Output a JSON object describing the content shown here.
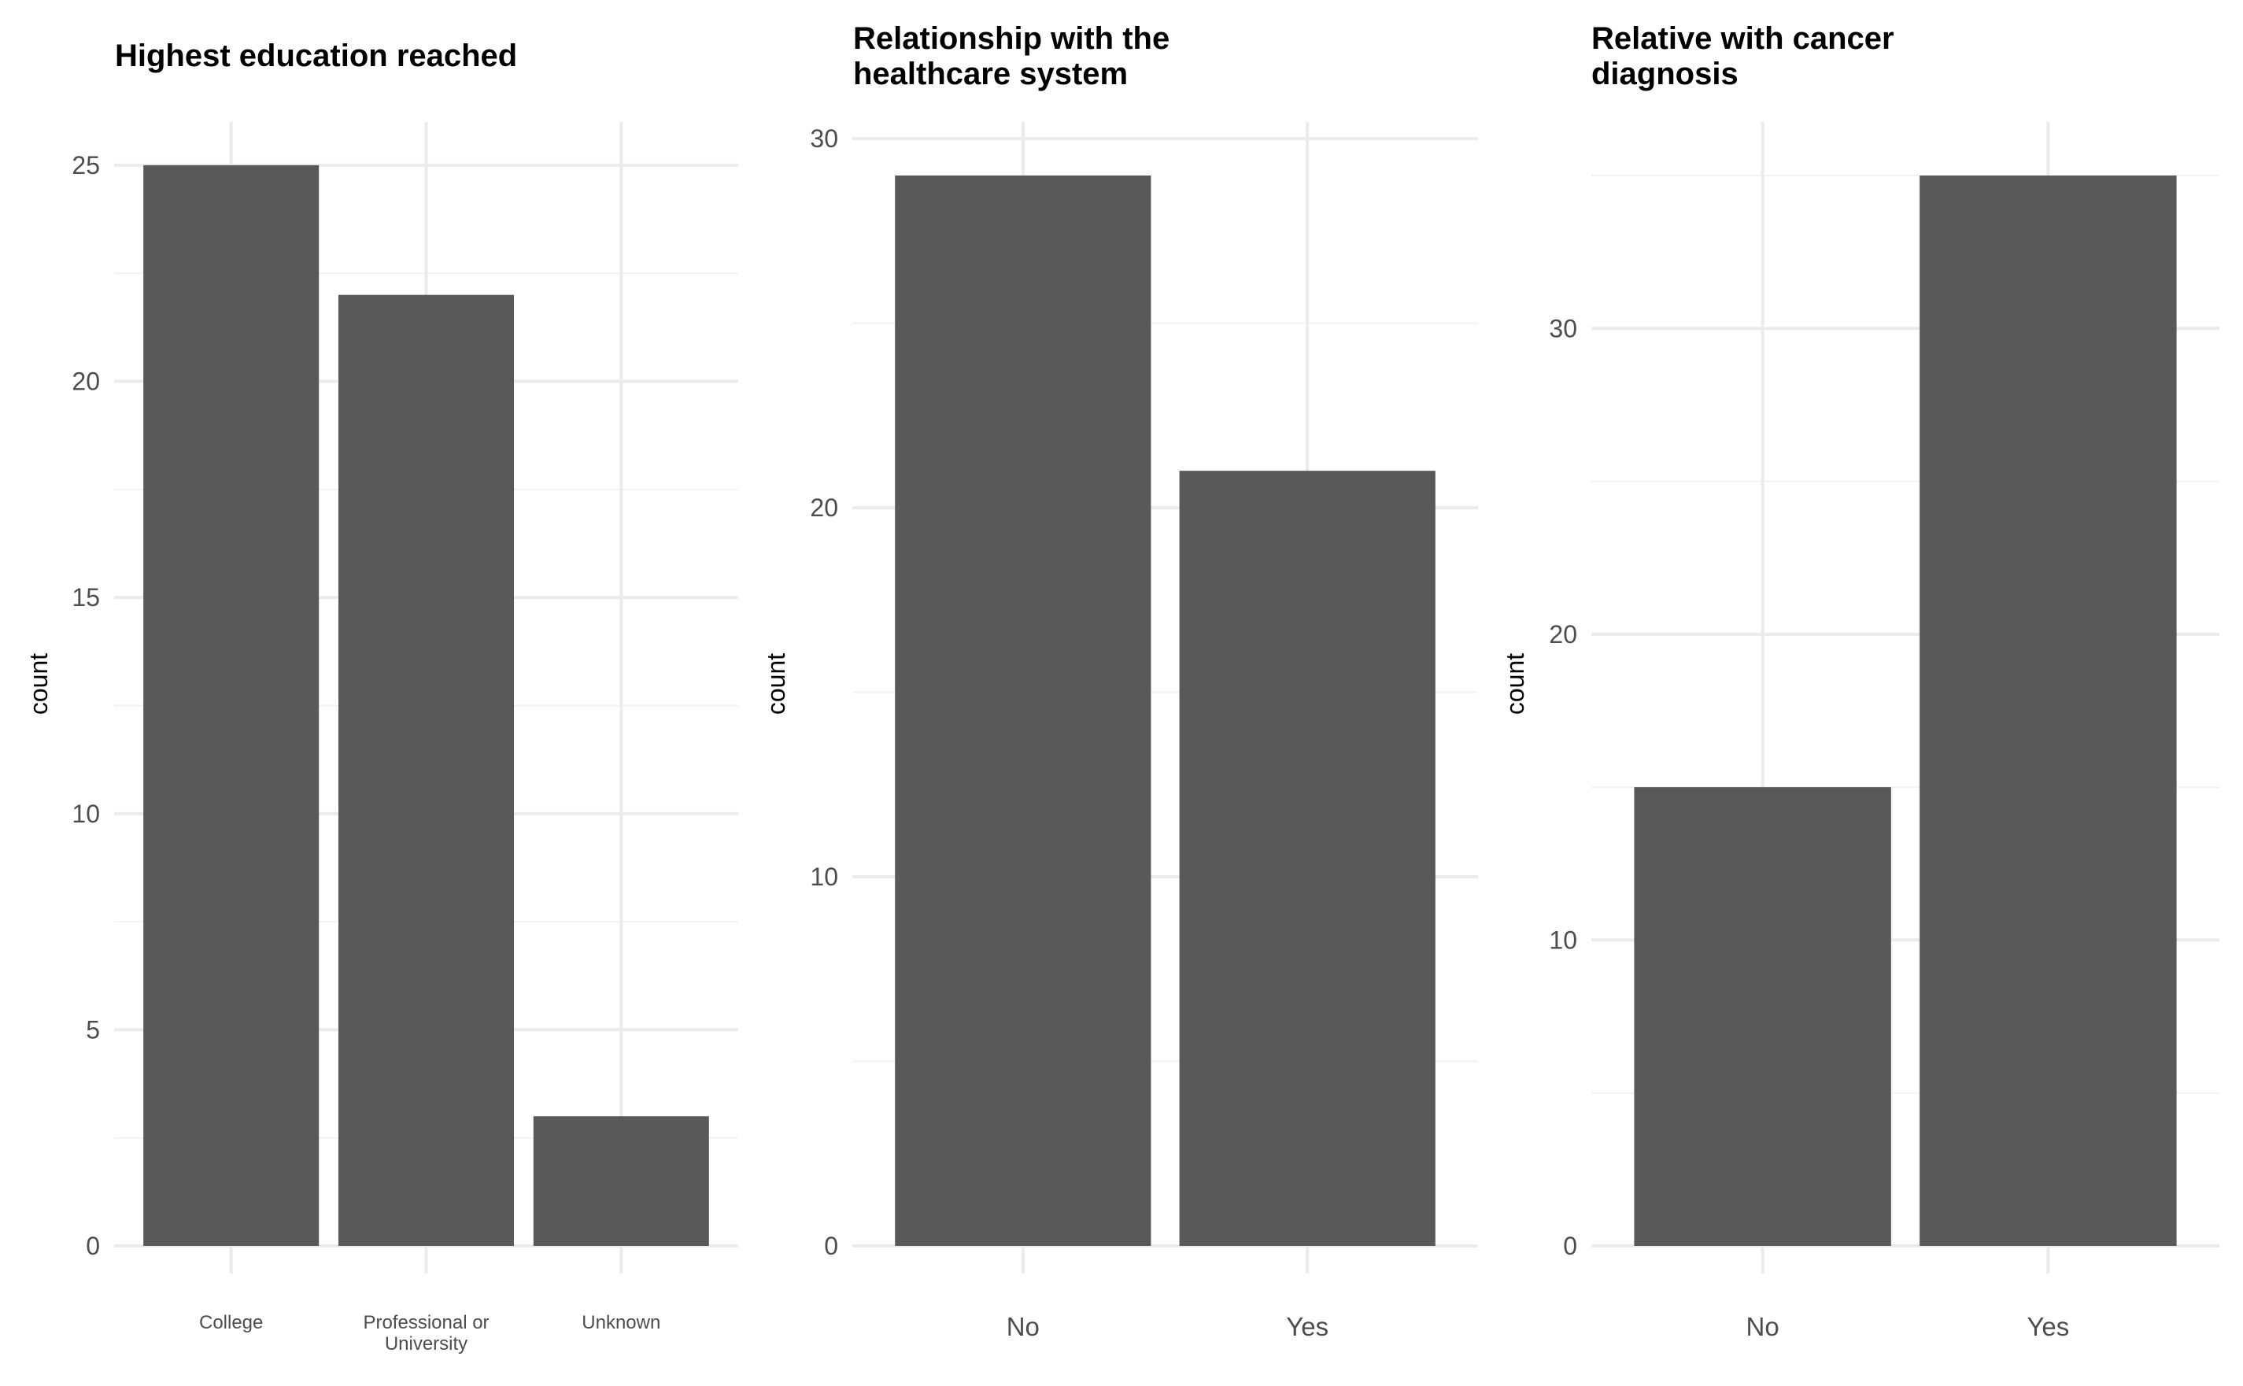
{
  "chart_data": [
    {
      "type": "bar",
      "title": [
        "Highest education reached"
      ],
      "xlabel": "",
      "ylabel": "count",
      "categories": [
        [
          "College"
        ],
        [
          "Professional or",
          "University"
        ],
        [
          "Unknown"
        ]
      ],
      "values": [
        25,
        22,
        3
      ],
      "ylim": [
        0,
        26
      ],
      "yticks": [
        0,
        5,
        10,
        15,
        20,
        25
      ],
      "grid": true,
      "bar_color": "#595959"
    },
    {
      "type": "bar",
      "title": [
        "Relationship with the",
        "healthcare system"
      ],
      "xlabel": "",
      "ylabel": "count",
      "categories": [
        [
          "No"
        ],
        [
          "Yes"
        ]
      ],
      "values": [
        29,
        21
      ],
      "ylim": [
        0,
        30.45
      ],
      "yticks": [
        0,
        10,
        20,
        30
      ],
      "grid": true,
      "bar_color": "#595959"
    },
    {
      "type": "bar",
      "title": [
        "Relative with cancer",
        "diagnosis"
      ],
      "xlabel": "",
      "ylabel": "count",
      "categories": [
        [
          "No"
        ],
        [
          "Yes"
        ]
      ],
      "values": [
        15,
        35
      ],
      "ylim": [
        0,
        36.75
      ],
      "yticks": [
        0,
        10,
        20,
        30
      ],
      "grid": true,
      "bar_color": "#595959"
    }
  ]
}
